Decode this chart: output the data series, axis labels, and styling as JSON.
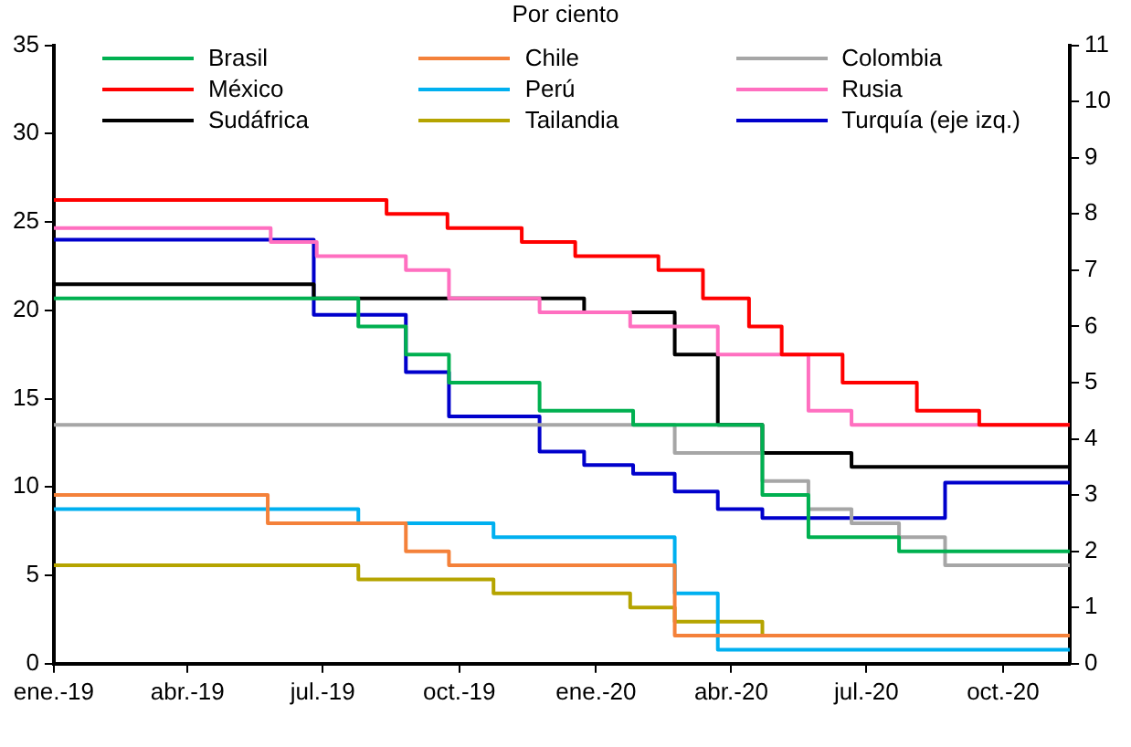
{
  "chart_data": {
    "type": "step",
    "title": "Por ciento",
    "xlim": [
      "2019-01-01",
      "2020-11-15"
    ],
    "xticks": [
      {
        "value": "2019-01-01",
        "label": "ene.-19"
      },
      {
        "value": "2019-04-01",
        "label": "abr.-19"
      },
      {
        "value": "2019-07-01",
        "label": "jul.-19"
      },
      {
        "value": "2019-10-01",
        "label": "oct.-19"
      },
      {
        "value": "2020-01-01",
        "label": "ene.-20"
      },
      {
        "value": "2020-04-01",
        "label": "abr.-20"
      },
      {
        "value": "2020-07-01",
        "label": "jul.-20"
      },
      {
        "value": "2020-10-01",
        "label": "oct.-20"
      }
    ],
    "ylim": [
      0,
      35
    ],
    "yticks": [
      0,
      5,
      10,
      15,
      20,
      25,
      30,
      35
    ],
    "y2lim": [
      0,
      11
    ],
    "y2ticks": [
      0,
      1,
      2,
      3,
      4,
      5,
      6,
      7,
      8,
      9,
      10,
      11
    ],
    "grid": false,
    "legend": "top",
    "series": [
      {
        "name": "Brasil",
        "color": "#00b050",
        "axis": "y2",
        "x": [
          "2019-01-01",
          "2019-07-25",
          "2019-08-26",
          "2019-09-24",
          "2019-11-24",
          "2020-01-26",
          "2020-04-22",
          "2020-05-23",
          "2020-07-23",
          "2020-11-15"
        ],
        "values": [
          6.5,
          6.0,
          5.5,
          5.0,
          4.5,
          4.25,
          3.0,
          2.25,
          2.0,
          2.0
        ]
      },
      {
        "name": "Chile",
        "color": "#f4813a",
        "axis": "y2",
        "x": [
          "2019-01-01",
          "2019-05-25",
          "2019-08-26",
          "2019-09-24",
          "2020-02-23",
          "2020-11-15"
        ],
        "values": [
          3.0,
          2.5,
          2.0,
          1.75,
          0.5,
          0.5
        ]
      },
      {
        "name": "Colombia",
        "color": "#a6a6a6",
        "axis": "y2",
        "x": [
          "2019-01-01",
          "2020-02-23",
          "2020-04-22",
          "2020-05-23",
          "2020-06-21",
          "2020-07-23",
          "2020-08-23",
          "2020-11-15"
        ],
        "values": [
          4.25,
          3.75,
          3.25,
          2.75,
          2.5,
          2.25,
          1.75,
          1.75
        ]
      },
      {
        "name": "México",
        "color": "#ff0000",
        "axis": "y2",
        "x": [
          "2019-01-01",
          "2019-08-13",
          "2019-09-23",
          "2019-11-12",
          "2019-12-18",
          "2020-02-12",
          "2020-03-13",
          "2020-04-13",
          "2020-05-05",
          "2020-06-15",
          "2020-08-04",
          "2020-09-15",
          "2020-11-15"
        ],
        "values": [
          8.25,
          8.0,
          7.75,
          7.5,
          7.25,
          7.0,
          6.5,
          6.0,
          5.5,
          5.0,
          4.5,
          4.25,
          4.25
        ]
      },
      {
        "name": "Perú",
        "color": "#00b0f0",
        "axis": "y2",
        "x": [
          "2019-01-01",
          "2019-07-25",
          "2019-10-24",
          "2020-02-23",
          "2020-03-23",
          "2020-11-15"
        ],
        "values": [
          2.75,
          2.5,
          2.25,
          1.25,
          0.25,
          0.25
        ]
      },
      {
        "name": "Rusia",
        "color": "#ff6fc0",
        "axis": "y2",
        "x": [
          "2019-01-01",
          "2019-05-27",
          "2019-06-27",
          "2019-08-26",
          "2019-09-24",
          "2019-11-24",
          "2020-01-24",
          "2020-03-23",
          "2020-05-23",
          "2020-06-21",
          "2020-11-15"
        ],
        "values": [
          7.75,
          7.5,
          7.25,
          7.0,
          6.5,
          6.25,
          6.0,
          5.5,
          4.5,
          4.25,
          4.25
        ]
      },
      {
        "name": "Sudáfrica",
        "color": "#000000",
        "axis": "y2",
        "x": [
          "2019-01-01",
          "2019-06-25",
          "2019-12-24",
          "2020-02-23",
          "2020-03-23",
          "2020-04-22",
          "2020-06-21",
          "2020-11-15"
        ],
        "values": [
          6.75,
          6.5,
          6.25,
          5.5,
          4.25,
          3.75,
          3.5,
          3.5
        ]
      },
      {
        "name": "Tailandia",
        "color": "#b5a400",
        "axis": "y2",
        "x": [
          "2019-01-01",
          "2019-07-25",
          "2019-10-24",
          "2020-01-24",
          "2020-02-23",
          "2020-04-22",
          "2020-11-15"
        ],
        "values": [
          1.75,
          1.5,
          1.25,
          1.0,
          0.75,
          0.5,
          0.5
        ]
      },
      {
        "name": "Turquía (eje izq.)",
        "color": "#0000cc",
        "axis": "y",
        "x": [
          "2019-01-01",
          "2019-06-25",
          "2019-08-26",
          "2019-09-24",
          "2019-11-24",
          "2019-12-24",
          "2020-01-26",
          "2020-02-23",
          "2020-03-23",
          "2020-04-22",
          "2020-08-23",
          "2020-11-15"
        ],
        "values": [
          24,
          19.75,
          16.5,
          14.0,
          12.0,
          11.25,
          10.75,
          9.75,
          8.75,
          8.25,
          10.25,
          10.25
        ]
      }
    ]
  }
}
